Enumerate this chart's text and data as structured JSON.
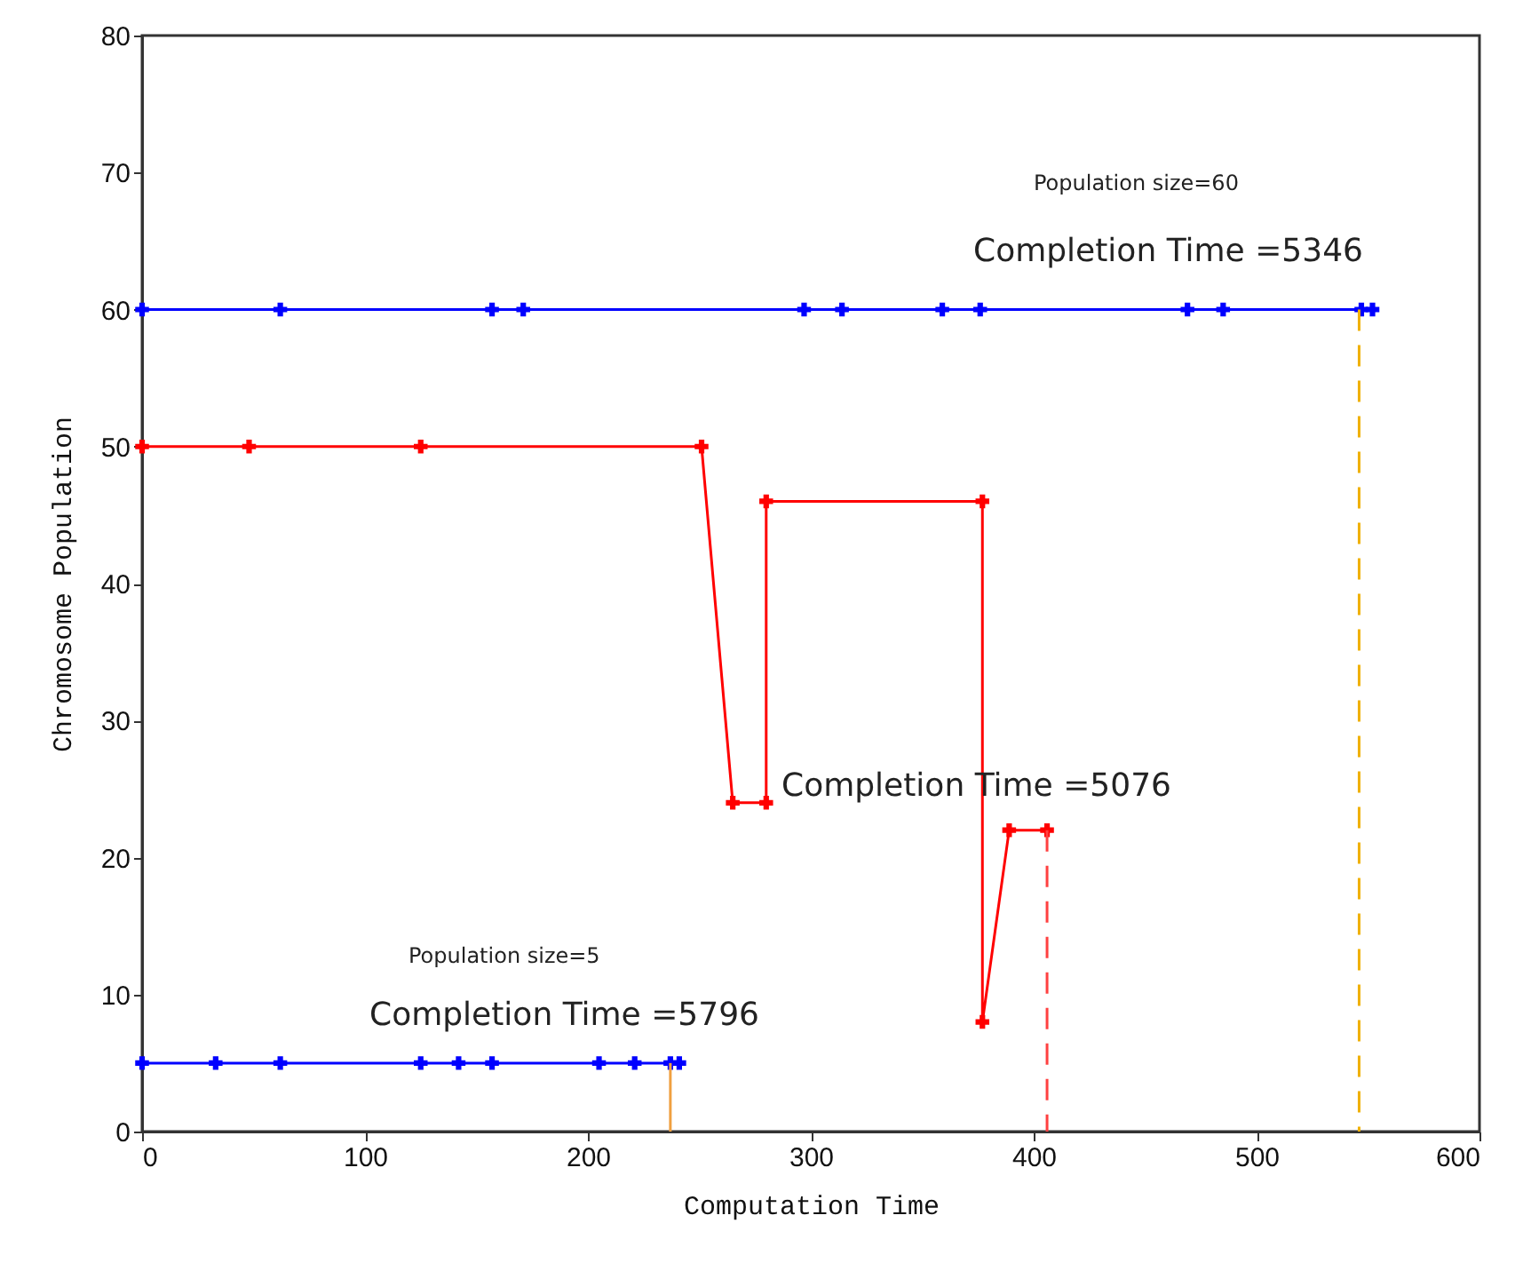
{
  "chart_data": {
    "type": "line",
    "xlabel": "Computation Time",
    "ylabel": "Chromosome Population",
    "xlim": [
      0,
      600
    ],
    "ylim": [
      0,
      80
    ],
    "xticks": [
      0,
      100,
      200,
      300,
      400,
      500,
      600
    ],
    "yticks": [
      0,
      10,
      20,
      30,
      40,
      50,
      60,
      70,
      80
    ],
    "series": [
      {
        "color": "#0000ff",
        "marker": "cross",
        "x": [
          0,
          62,
          157,
          171,
          297,
          314,
          359,
          376,
          469,
          485,
          547,
          552
        ],
        "values": [
          60,
          60,
          60,
          60,
          60,
          60,
          60,
          60,
          60,
          60,
          60,
          60
        ]
      },
      {
        "color": "#ff0000",
        "marker": "cross",
        "x": [
          0,
          48,
          125,
          251,
          265,
          280,
          280,
          377,
          377,
          389,
          406
        ],
        "values": [
          50,
          50,
          50,
          50,
          24,
          24,
          46,
          46,
          8,
          22,
          22
        ]
      },
      {
        "color": "#0000ff",
        "marker": "cross",
        "x": [
          0,
          33,
          62,
          125,
          142,
          157,
          205,
          221,
          237,
          241
        ],
        "values": [
          5,
          5,
          5,
          5,
          5,
          5,
          5,
          5,
          5,
          5
        ]
      },
      {
        "color": "#f0b000",
        "marker": "none",
        "line_style": "dashed",
        "x": [
          546,
          546
        ],
        "values": [
          60,
          0
        ]
      },
      {
        "color": "#ff4040",
        "marker": "none",
        "line_style": "dashed",
        "x": [
          406,
          406
        ],
        "values": [
          22,
          0
        ]
      },
      {
        "color": "#f0a040",
        "marker": "none",
        "x": [
          237,
          237
        ],
        "values": [
          5,
          0
        ]
      }
    ],
    "annotations": [
      "Population size=60",
      "Completion Time =5346",
      "Completion Time =5076",
      "Population size=5",
      "Completion Time =5796"
    ]
  }
}
